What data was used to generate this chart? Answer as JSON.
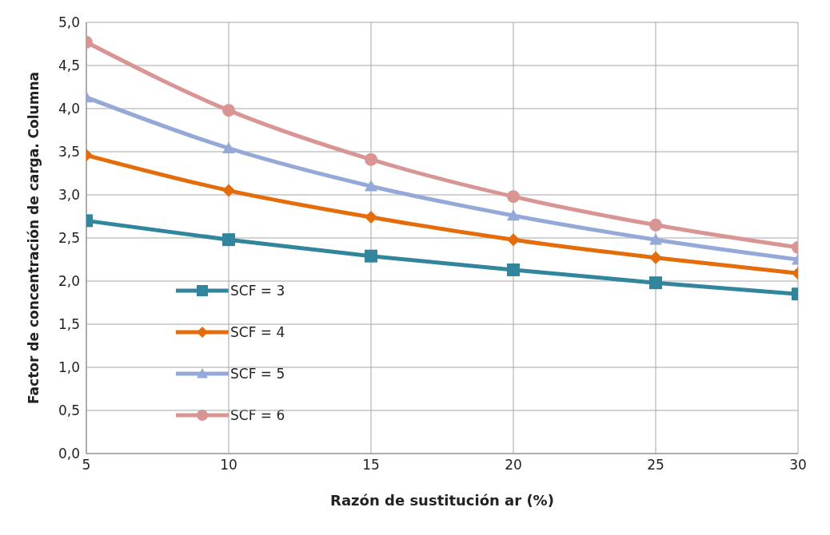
{
  "chart_data": {
    "type": "line",
    "xlabel": "Razón de sustitución ar (%)",
    "ylabel": "Factor de concentración de carga. Columna",
    "x": [
      5,
      10,
      15,
      20,
      25,
      30
    ],
    "series": [
      {
        "name": "SCF = 3",
        "color": "#31859c",
        "marker": "square",
        "values": [
          2.7,
          2.48,
          2.29,
          2.13,
          1.98,
          1.85
        ]
      },
      {
        "name": "SCF = 4",
        "color": "#e46c0a",
        "marker": "diamond",
        "values": [
          3.46,
          3.05,
          2.74,
          2.48,
          2.27,
          2.09
        ]
      },
      {
        "name": "SCF = 5",
        "color": "#95a9d8",
        "marker": "triangle",
        "values": [
          4.13,
          3.54,
          3.1,
          2.76,
          2.48,
          2.25
        ]
      },
      {
        "name": "SCF = 6",
        "color": "#d99594",
        "marker": "circle",
        "values": [
          4.77,
          3.98,
          3.41,
          2.98,
          2.65,
          2.39
        ]
      }
    ],
    "xlim": [
      5,
      30
    ],
    "xticks": [
      5,
      10,
      15,
      20,
      25,
      30
    ],
    "ylim": [
      0,
      5
    ],
    "yticks": [
      {
        "value": 0,
        "label": "0,0"
      },
      {
        "value": 0.5,
        "label": "0,5"
      },
      {
        "value": 1,
        "label": "1,0"
      },
      {
        "value": 1.5,
        "label": "1,5"
      },
      {
        "value": 2,
        "label": "2,0"
      },
      {
        "value": 2.5,
        "label": "2,5"
      },
      {
        "value": 3,
        "label": "3,0"
      },
      {
        "value": 3.5,
        "label": "3,5"
      },
      {
        "value": 4,
        "label": "4,0"
      },
      {
        "value": 4.5,
        "label": "4,5"
      },
      {
        "value": 5,
        "label": "5,0"
      }
    ],
    "grid": true,
    "legend": "bottom left",
    "line_style": "solid"
  }
}
